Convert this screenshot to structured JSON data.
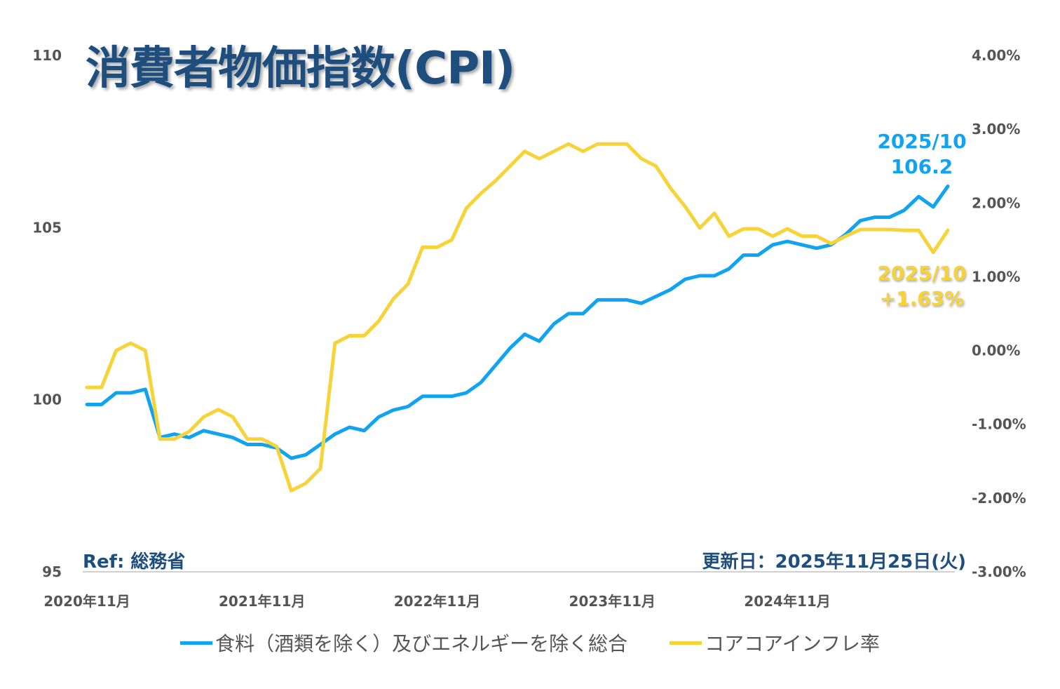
{
  "chart_data": {
    "type": "line",
    "title": "消費者物価指数(CPI)",
    "x": [
      "2020/11",
      "2020/12",
      "2021/01",
      "2021/02",
      "2021/03",
      "2021/04",
      "2021/05",
      "2021/06",
      "2021/07",
      "2021/08",
      "2021/09",
      "2021/10",
      "2021/11",
      "2021/12",
      "2022/01",
      "2022/02",
      "2022/03",
      "2022/04",
      "2022/05",
      "2022/06",
      "2022/07",
      "2022/08",
      "2022/09",
      "2022/10",
      "2022/11",
      "2022/12",
      "2023/01",
      "2023/02",
      "2023/03",
      "2023/04",
      "2023/05",
      "2023/06",
      "2023/07",
      "2023/08",
      "2023/09",
      "2023/10",
      "2023/11",
      "2023/12",
      "2024/01",
      "2024/02",
      "2024/03",
      "2024/04",
      "2024/05",
      "2024/06",
      "2024/07",
      "2024/08",
      "2024/09",
      "2024/10",
      "2024/11",
      "2024/12",
      "2025/01",
      "2025/02",
      "2025/03",
      "2025/04",
      "2025/05",
      "2025/06",
      "2025/07",
      "2025/08",
      "2025/09",
      "2025/10"
    ],
    "x_tick_labels": [
      "2020年11月",
      "2021年11月",
      "2022年11月",
      "2023年11月",
      "2024年11月"
    ],
    "y_left": {
      "ylim": [
        95,
        110
      ],
      "ticks": [
        "95",
        "100",
        "105",
        "110"
      ]
    },
    "y_right": {
      "ylim": [
        -3,
        4
      ],
      "ticks": [
        "-3.00%",
        "-2.00%",
        "-1.00%",
        "0.00%",
        "1.00%",
        "2.00%",
        "3.00%",
        "4.00%"
      ]
    },
    "grid": false,
    "legend_placement": "bottom",
    "series": [
      {
        "name": "食料（酒類を除く）及びエネルギーを除く総合",
        "axis": "left",
        "color": "#0fa3f0",
        "values": [
          99.86,
          99.86,
          100.2,
          100.2,
          100.3,
          98.9,
          99.0,
          98.9,
          99.1,
          99.0,
          98.9,
          98.7,
          98.7,
          98.6,
          98.3,
          98.4,
          98.7,
          99.0,
          99.2,
          99.1,
          99.5,
          99.7,
          99.8,
          100.1,
          100.1,
          100.1,
          100.2,
          100.5,
          101.0,
          101.5,
          101.9,
          101.7,
          102.2,
          102.5,
          102.5,
          102.9,
          102.9,
          102.9,
          102.8,
          103.0,
          103.2,
          103.5,
          103.6,
          103.6,
          103.8,
          104.2,
          104.2,
          104.5,
          104.6,
          104.5,
          104.4,
          104.5,
          104.8,
          105.2,
          105.3,
          105.3,
          105.5,
          105.9,
          105.6,
          106.2
        ]
      },
      {
        "name": "コアコアインフレ率",
        "axis": "right",
        "color": "#f7d33a",
        "values": [
          -0.5,
          -0.5,
          0.0,
          0.1,
          0.0,
          -1.2,
          -1.2,
          -1.1,
          -0.9,
          -0.8,
          -0.9,
          -1.2,
          -1.2,
          -1.3,
          -1.9,
          -1.8,
          -1.6,
          0.1,
          0.2,
          0.2,
          0.4,
          0.7,
          0.9,
          1.4,
          1.4,
          1.5,
          1.93,
          2.13,
          2.3,
          2.5,
          2.7,
          2.6,
          2.7,
          2.8,
          2.7,
          2.8,
          2.8,
          2.8,
          2.6,
          2.5,
          2.2,
          1.95,
          1.66,
          1.86,
          1.55,
          1.65,
          1.65,
          1.55,
          1.65,
          1.55,
          1.55,
          1.45,
          1.55,
          1.64,
          1.64,
          1.64,
          1.63,
          1.63,
          1.33,
          1.63
        ]
      }
    ],
    "annotations": {
      "blue_date": "2025/10",
      "blue_value": "106.2",
      "yellow_date": "2025/10",
      "yellow_value": "+1.63%"
    }
  },
  "footer": {
    "ref": "Ref: 総務省",
    "updated": "更新日：2025年11月25日(火)"
  }
}
